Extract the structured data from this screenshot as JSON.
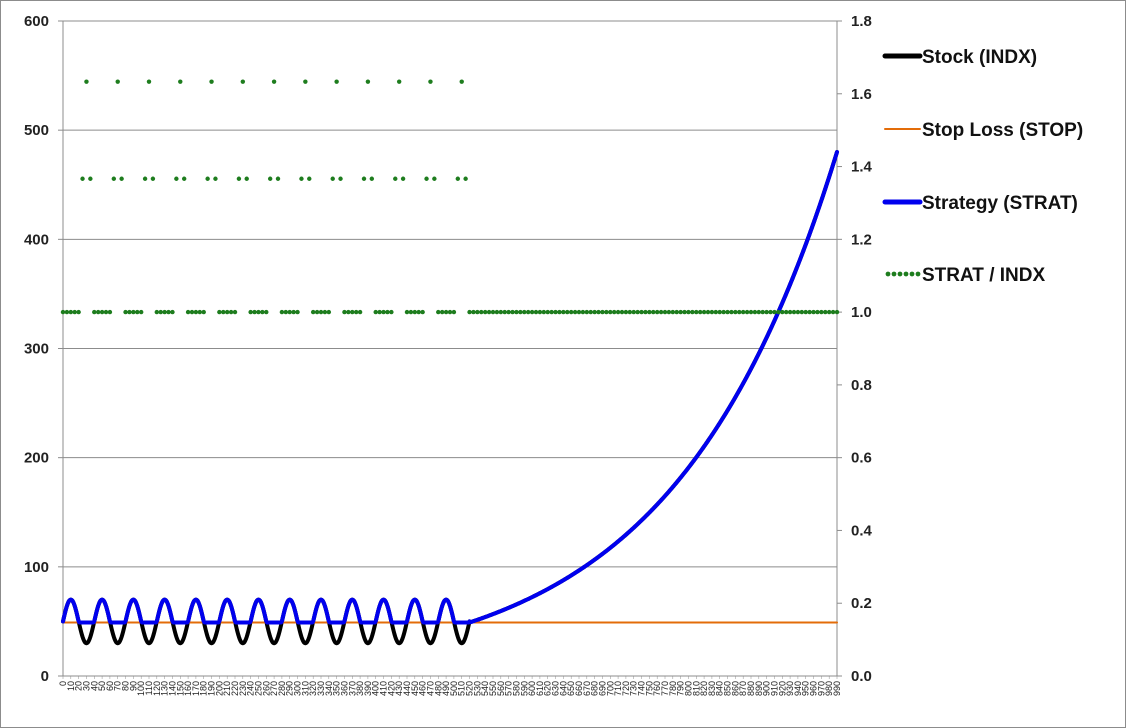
{
  "chart_data": {
    "type": "line",
    "title": "",
    "xlabel": "",
    "ylabel": "",
    "y2label": "",
    "x_range": [
      0,
      990
    ],
    "x_tick_step": 10,
    "y_left": {
      "min": 0,
      "max": 600,
      "ticks": [
        0,
        100,
        200,
        300,
        400,
        500,
        600
      ]
    },
    "y_right": {
      "min": 0.0,
      "max": 1.8,
      "ticks": [
        0.0,
        0.2,
        0.4,
        0.6,
        0.8,
        1.0,
        1.2,
        1.4,
        1.6,
        1.8
      ]
    },
    "grid": true,
    "legend_position": "right",
    "series": [
      {
        "name": "Stock (INDX)",
        "axis": "left",
        "color": "#000000",
        "style": "solid",
        "description": "Oscillates between 30 and 70 with period 40 from x=0 to x=520, then equals STRAT",
        "key_points": [
          [
            0,
            50
          ],
          [
            10,
            70
          ],
          [
            30,
            30
          ],
          [
            50,
            70
          ],
          [
            490,
            70
          ],
          [
            510,
            30
          ],
          [
            520,
            50
          ]
        ],
        "oscillation": {
          "center": 50,
          "amplitude": 20,
          "period": 40,
          "until": 520
        }
      },
      {
        "name": "Stop Loss (STOP)",
        "axis": "left",
        "color": "#e36c09",
        "style": "solid",
        "key_points": [
          [
            0,
            49
          ],
          [
            990,
            49
          ]
        ]
      },
      {
        "name": "Strategy (STRAT)",
        "axis": "left",
        "color": "#0000ee",
        "style": "solid",
        "description": "max(Stock, Stop) until x=520, then exponential growth",
        "key_points": [
          [
            520,
            49
          ],
          [
            600,
            67
          ],
          [
            700,
            110
          ],
          [
            800,
            185
          ],
          [
            900,
            318
          ],
          [
            990,
            480
          ]
        ]
      },
      {
        "name": "STRAT / INDX",
        "axis": "right",
        "color": "#1e7d1e",
        "style": "dotted",
        "description": "Ratio peaks near 1.61 every 40 units until x=520, then 1.0",
        "key_points": [
          [
            0,
            1.0
          ],
          [
            30,
            1.61
          ],
          [
            70,
            1.61
          ],
          [
            510,
            1.61
          ],
          [
            530,
            1.0
          ],
          [
            990,
            1.0
          ]
        ]
      }
    ]
  }
}
